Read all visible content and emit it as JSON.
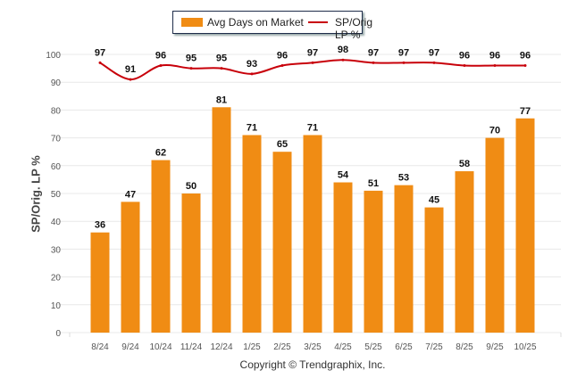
{
  "chart_data": {
    "type": "bar",
    "categories": [
      "8/24",
      "9/24",
      "10/24",
      "11/24",
      "12/24",
      "1/25",
      "2/25",
      "3/25",
      "4/25",
      "5/25",
      "6/25",
      "7/25",
      "8/25",
      "9/25",
      "10/25"
    ],
    "series": [
      {
        "name": "Avg Days on Market",
        "type": "bar",
        "color": "#f08c14",
        "values": [
          36,
          47,
          62,
          50,
          81,
          71,
          65,
          71,
          54,
          51,
          53,
          45,
          58,
          70,
          77
        ]
      },
      {
        "name": "SP/Orig LP %",
        "type": "line",
        "color": "#c8000a",
        "values": [
          97,
          91,
          96,
          95,
          95,
          93,
          96,
          97,
          98,
          97,
          97,
          97,
          96,
          96,
          96
        ]
      }
    ],
    "ylabel": "SP/Orig. LP %",
    "ylim": [
      0,
      100
    ],
    "yticks": [
      "0",
      "10",
      "20",
      "30",
      "40",
      "50",
      "60",
      "70",
      "80",
      "90",
      "100"
    ],
    "grid": true,
    "legend_placement": "top-center"
  },
  "footer": "Copyright © Trendgraphix, Inc."
}
